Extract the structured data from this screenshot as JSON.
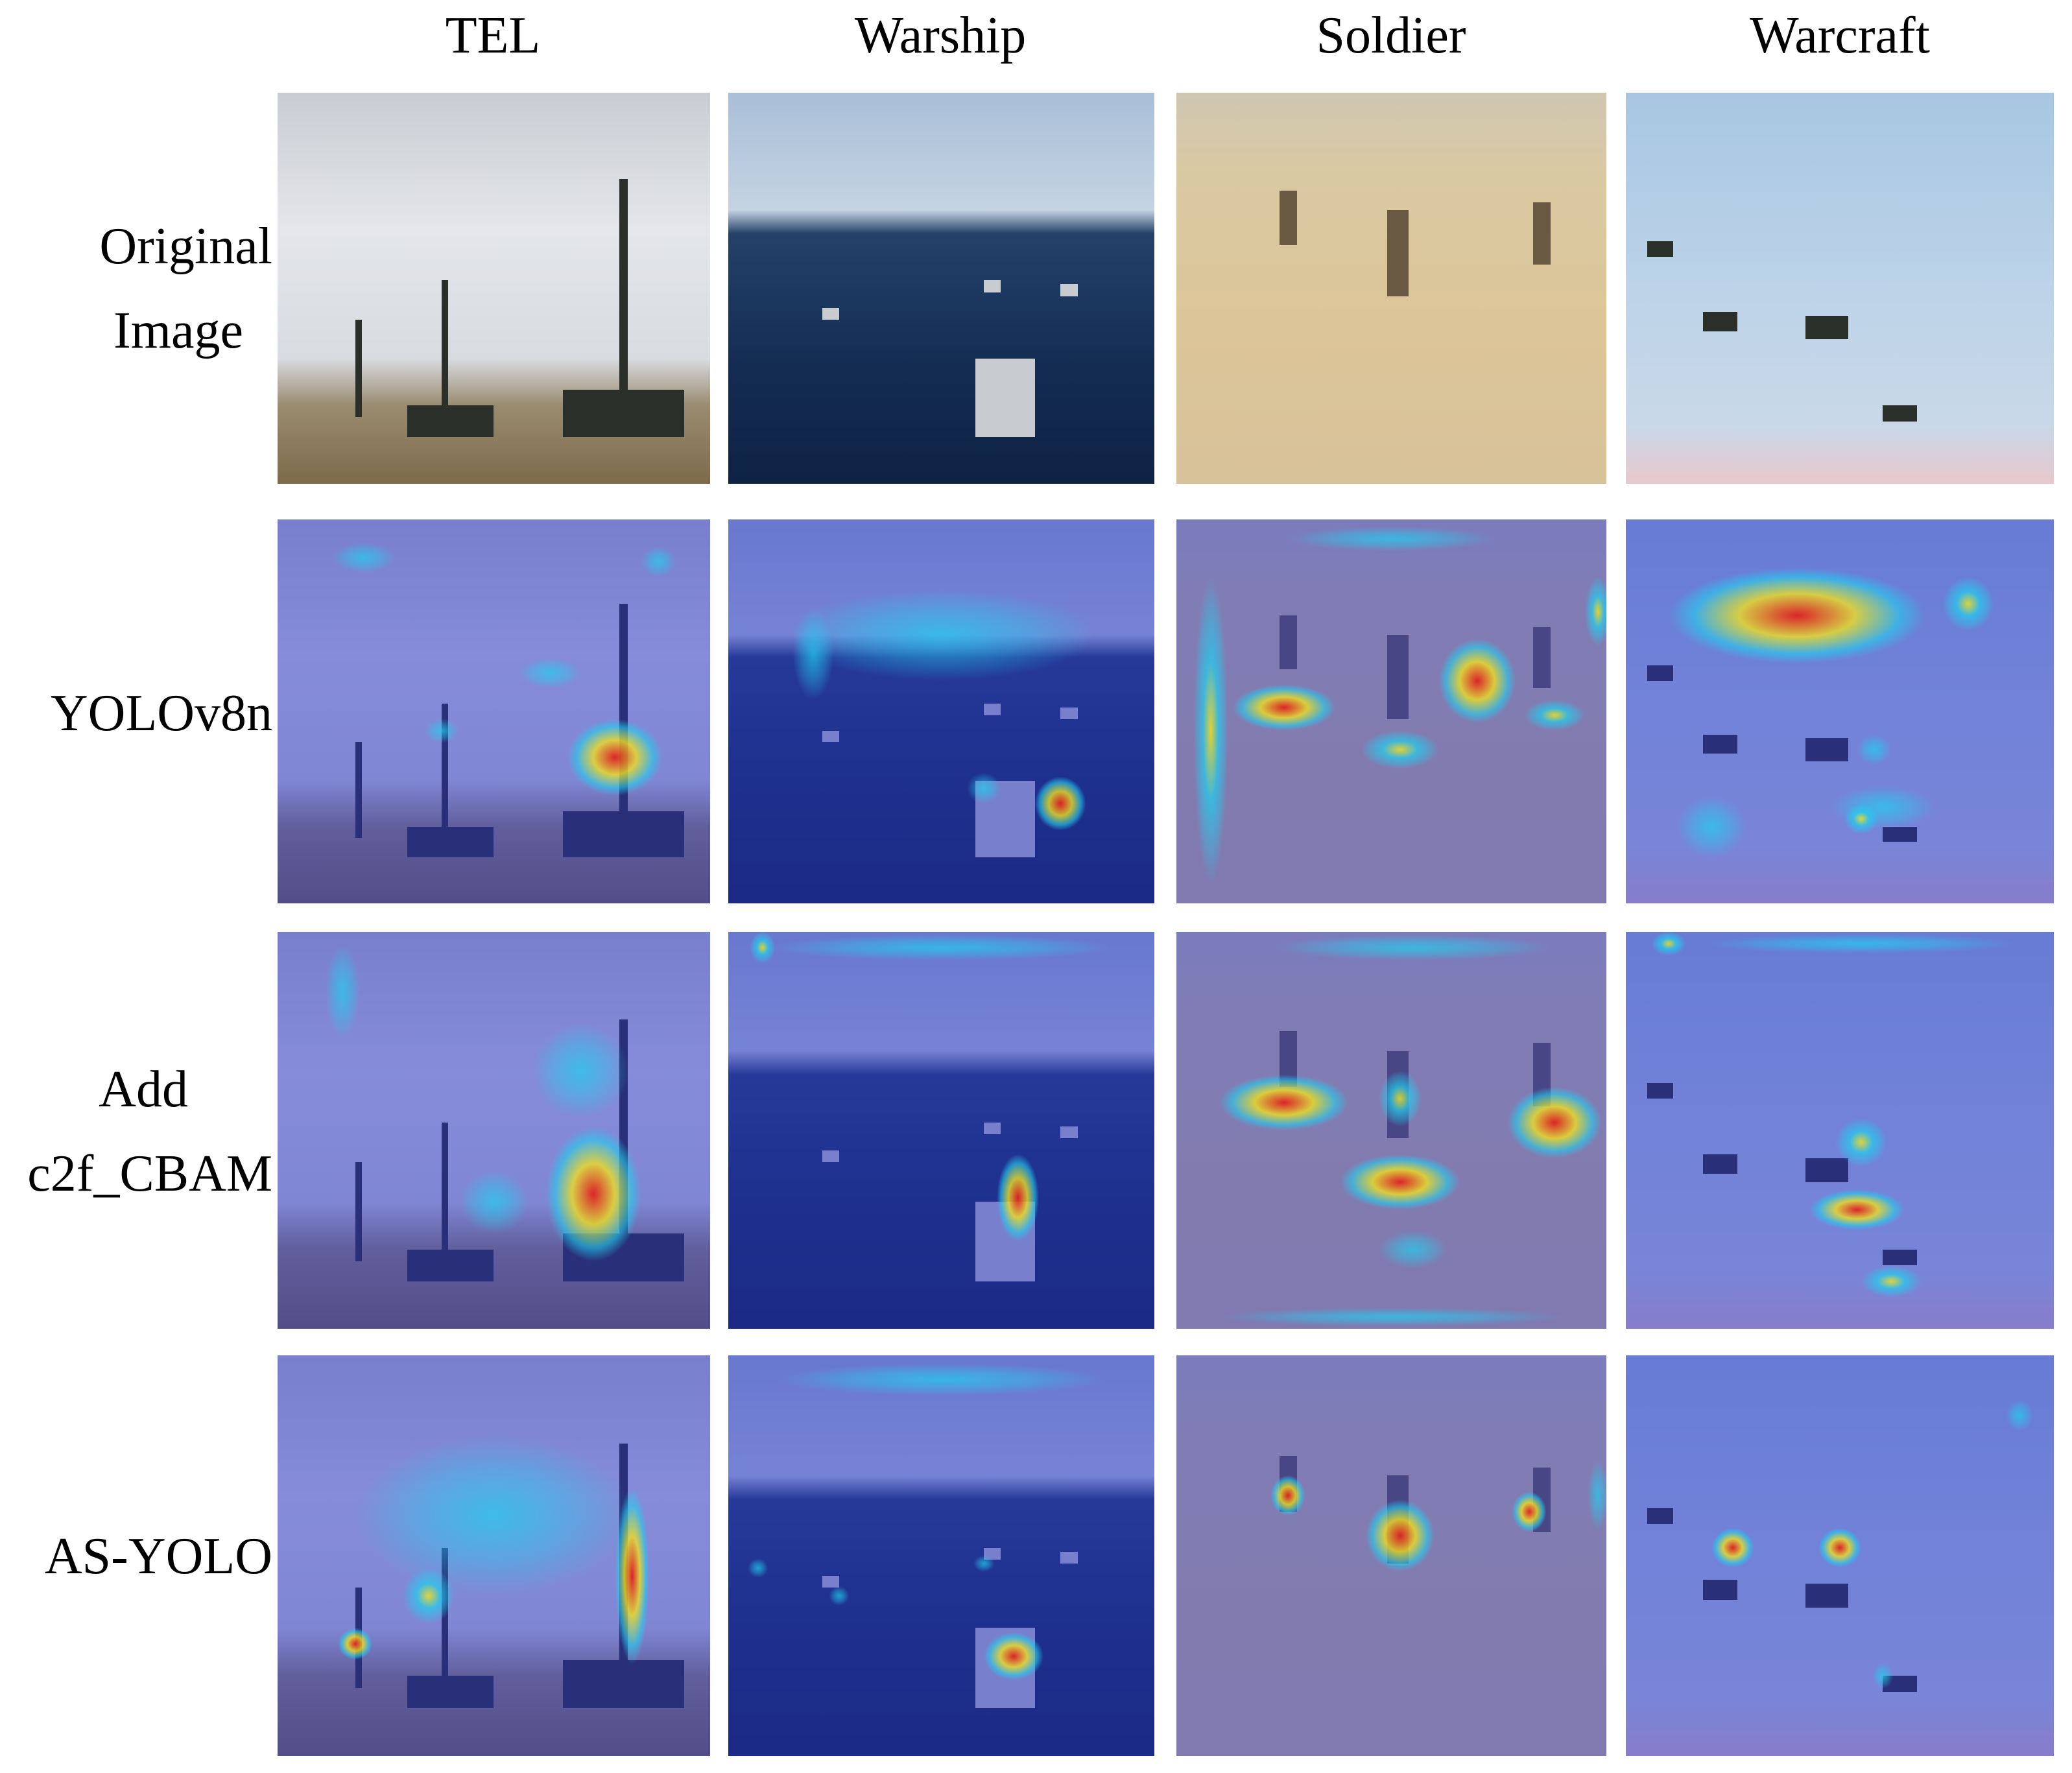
{
  "columns": [
    {
      "label": "TEL"
    },
    {
      "label": "Warship"
    },
    {
      "label": "Soldier"
    },
    {
      "label": "Warcraft"
    }
  ],
  "rows": [
    {
      "label_lines": [
        "Original",
        "Image"
      ]
    },
    {
      "label_lines": [
        "YOLOv8n"
      ]
    },
    {
      "label_lines": [
        "Add",
        "c2f_CBAM"
      ]
    },
    {
      "label_lines": [
        "AS-YOLO"
      ]
    }
  ],
  "colors": {
    "heat_hot": "#e02020",
    "heat_warm": "#f0e020",
    "heat_cool": "#20d0f0",
    "heat_base": "#3032c8"
  }
}
